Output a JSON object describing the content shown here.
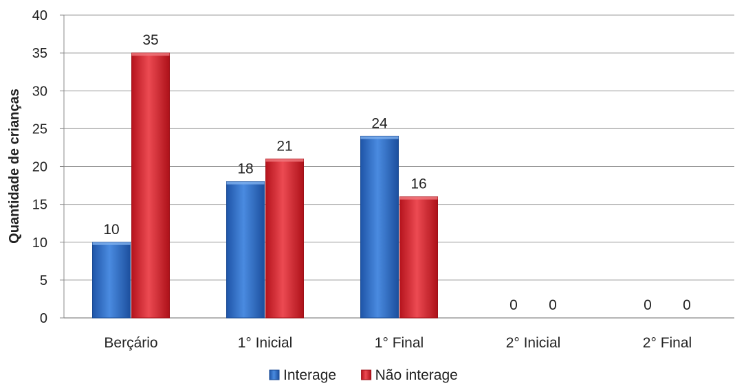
{
  "chart_data": {
    "type": "bar",
    "title": "",
    "xlabel": "",
    "ylabel": "Quantidade de crianças",
    "ylim": [
      0,
      40
    ],
    "yticks": [
      0,
      5,
      10,
      15,
      20,
      25,
      30,
      35,
      40
    ],
    "grid": true,
    "legend_position": "bottom",
    "categories": [
      "Berçário",
      "1° Inicial",
      "1° Final",
      "2° Inicial",
      "2° Final"
    ],
    "series": [
      {
        "name": "Interage",
        "values": [
          10,
          18,
          24,
          0,
          0
        ],
        "color": "#2f6fc4"
      },
      {
        "name": "Não interage",
        "values": [
          35,
          21,
          16,
          0,
          0
        ],
        "color": "#d3242e"
      }
    ]
  }
}
